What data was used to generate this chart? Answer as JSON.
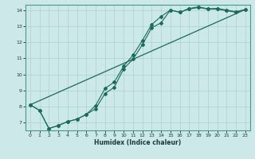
{
  "xlabel": "Humidex (Indice chaleur)",
  "bg_color": "#cce8e8",
  "line_color": "#1a6b5a",
  "grid_color": "#aad0d0",
  "xlim": [
    -0.5,
    23.5
  ],
  "ylim": [
    6.5,
    14.35
  ],
  "xticks": [
    0,
    1,
    2,
    3,
    4,
    5,
    6,
    7,
    8,
    9,
    10,
    11,
    12,
    13,
    14,
    15,
    16,
    17,
    18,
    19,
    20,
    21,
    22,
    23
  ],
  "yticks": [
    7,
    8,
    9,
    10,
    11,
    12,
    13,
    14
  ],
  "line1_x": [
    0,
    1,
    2,
    3,
    4,
    5,
    6,
    7,
    8,
    9,
    10,
    11,
    12,
    13,
    14,
    15,
    16,
    17,
    18,
    19,
    20,
    21,
    22,
    23
  ],
  "line1_y": [
    8.1,
    7.75,
    6.62,
    6.8,
    7.05,
    7.2,
    7.5,
    7.85,
    8.8,
    9.2,
    10.35,
    10.95,
    11.85,
    12.92,
    13.22,
    14.02,
    13.88,
    14.12,
    14.22,
    14.1,
    14.12,
    14.02,
    13.92,
    14.05
  ],
  "line2_x": [
    0,
    1,
    2,
    3,
    4,
    5,
    6,
    7,
    8,
    9,
    10,
    11,
    12,
    13,
    14,
    15,
    16,
    17,
    18,
    19,
    20,
    21,
    22,
    23
  ],
  "line2_y": [
    8.1,
    7.75,
    6.62,
    6.8,
    7.05,
    7.2,
    7.5,
    8.05,
    9.12,
    9.52,
    10.52,
    11.2,
    12.12,
    13.12,
    13.62,
    14.02,
    13.88,
    14.08,
    14.18,
    14.08,
    14.08,
    13.98,
    13.88,
    14.05
  ],
  "line3_x": [
    0,
    23
  ],
  "line3_y": [
    8.1,
    14.05
  ]
}
